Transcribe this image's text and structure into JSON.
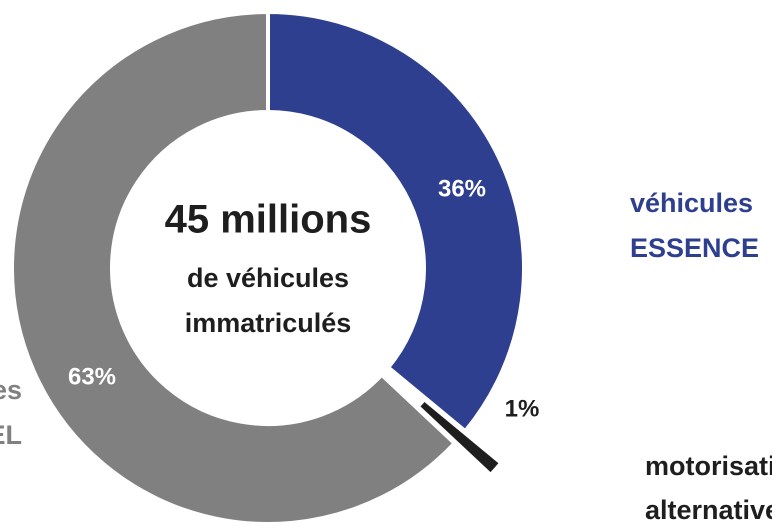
{
  "chart_data": {
    "type": "donut",
    "center_text": [
      "45 millions",
      "de véhicules",
      "immatriculés"
    ],
    "categories": [
      [
        "véhicules",
        "ESSENCE"
      ],
      [
        "motorisations",
        "alternatives"
      ],
      [
        "véhicules",
        "DIESEL"
      ]
    ],
    "values": [
      36,
      1,
      63
    ],
    "value_labels": [
      "36%",
      "1%",
      "63%"
    ],
    "colors": [
      "#2e3f8f",
      "#1e1e1e",
      "#808080"
    ]
  }
}
